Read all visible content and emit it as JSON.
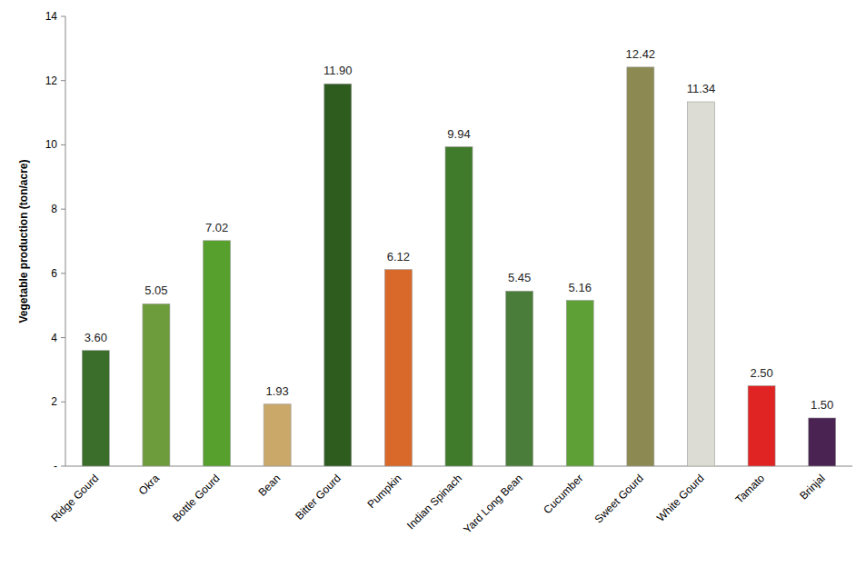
{
  "chart_data": {
    "type": "bar",
    "y_label": "Vegetable production (ton/acre)",
    "categories": [
      "Ridge Gourd",
      "Okra",
      "Bottle Gourd",
      "Bean",
      "Bitter Gourd",
      "Pumpkin",
      "Indian Spinach",
      "Yard Long Bean",
      "Cucumber",
      "Sweet Gourd",
      "White Gourd",
      "Tamato",
      "Brinjal"
    ],
    "values": [
      3.6,
      5.05,
      7.02,
      1.93,
      11.9,
      6.12,
      9.94,
      5.45,
      5.16,
      12.42,
      11.34,
      2.5,
      1.5
    ],
    "value_labels": [
      "3.60",
      "5.05",
      "7.02",
      "1.93",
      "11.90",
      "6.12",
      "9.94",
      "5.45",
      "5.16",
      "12.42",
      "11.34",
      "2.50",
      "1.50"
    ],
    "colors": [
      "#3b6e2a",
      "#6d9c3c",
      "#57a02e",
      "#c9a86a",
      "#2e5c1f",
      "#d9692a",
      "#3f7b2b",
      "#4b7d3a",
      "#5ea036",
      "#8c8a52",
      "#dcdcd4",
      "#e02424",
      "#4a2352"
    ],
    "ylim": [
      0,
      14
    ],
    "yticks": [
      {
        "value": 0,
        "label": "-"
      },
      2,
      4,
      6,
      8,
      10,
      12,
      14
    ],
    "data_labels": true,
    "grid": false
  }
}
